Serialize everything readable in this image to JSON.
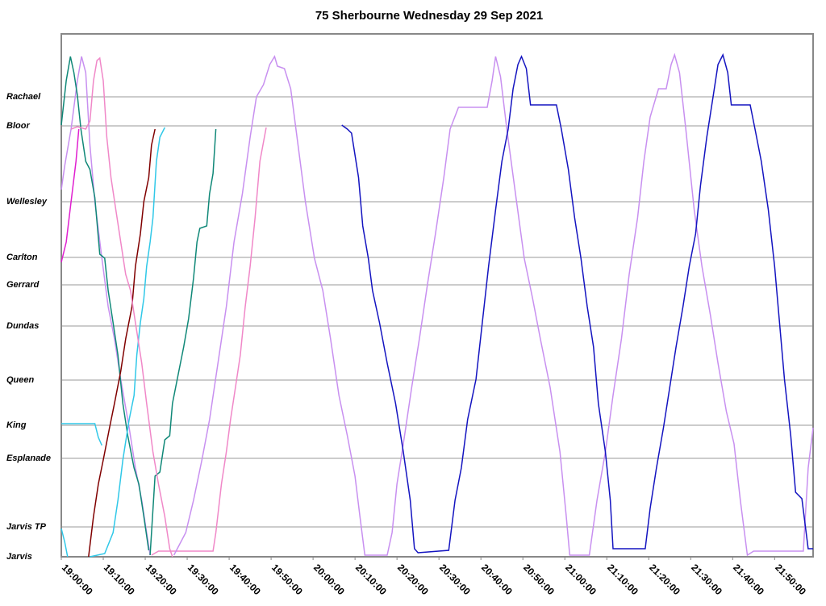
{
  "chart_data": {
    "type": "line",
    "title": "75 Sherbourne Wednesday 29 Sep 2021",
    "xlim": [
      "19:00:00",
      "21:59:10"
    ],
    "xticks": [
      "19:00:00",
      "19:10:00",
      "19:20:00",
      "19:30:00",
      "19:40:00",
      "19:50:00",
      "20:00:00",
      "20:10:00",
      "20:20:00",
      "20:30:00",
      "20:40:00",
      "20:50:00",
      "21:00:00",
      "21:10:00",
      "21:20:00",
      "21:30:00",
      "21:40:00",
      "21:50:00"
    ],
    "ylim": [
      0,
      3888
    ],
    "yticks": [
      {
        "value": 0,
        "label": "Jarvis"
      },
      {
        "value": 222,
        "label": "Jarvis TP"
      },
      {
        "value": 732,
        "label": "Esplanade"
      },
      {
        "value": 978,
        "label": "King"
      },
      {
        "value": 1314,
        "label": "Queen"
      },
      {
        "value": 1716,
        "label": "Dundas"
      },
      {
        "value": 2022,
        "label": "Gerrard"
      },
      {
        "value": 2226,
        "label": "Carlton"
      },
      {
        "value": 2640,
        "label": "Wellesley"
      },
      {
        "value": 3204,
        "label": "Bloor"
      },
      {
        "value": 3420,
        "label": "Rachael"
      }
    ],
    "grid": true,
    "series": [
      {
        "color": "#e020d0",
        "x": [
          "19:00:00",
          "19:01:10",
          "19:02:20",
          "19:03:30",
          "19:04:10"
        ],
        "values": [
          2190,
          2340,
          2640,
          2940,
          3180
        ]
      },
      {
        "color": "#c890f0",
        "x": [
          "19:00:00",
          "19:00:50",
          "19:02:20",
          "19:03:50",
          "19:04:50",
          "19:05:50",
          "19:06:50",
          "19:08:00",
          "19:09:40",
          "19:11:10",
          "19:12:40",
          "19:14:10",
          "19:16:10",
          "19:17:40",
          "19:19:10",
          "19:20:20",
          "19:21:10"
        ],
        "values": [
          2730,
          2910,
          3180,
          3540,
          3720,
          3600,
          3060,
          2640,
          2220,
          1860,
          1620,
          1320,
          960,
          660,
          420,
          180,
          12
        ]
      },
      {
        "color": "#108878",
        "x": [
          "19:00:00",
          "19:01:10",
          "19:02:10",
          "19:03:00",
          "19:03:50",
          "19:04:40",
          "19:05:50",
          "19:06:50",
          "19:08:00",
          "19:09:10",
          "19:10:20",
          "19:11:10",
          "19:12:20",
          "19:13:30",
          "19:14:40",
          "19:15:50",
          "19:17:20",
          "19:18:30",
          "19:19:40",
          "19:20:50"
        ],
        "values": [
          3210,
          3540,
          3720,
          3600,
          3432,
          3180,
          2940,
          2880,
          2670,
          2250,
          2220,
          1980,
          1740,
          1500,
          1140,
          900,
          660,
          540,
          300,
          48
        ]
      },
      {
        "color": "#108878",
        "x": [
          "19:21:10",
          "19:22:20",
          "19:23:30",
          "19:24:40",
          "19:25:50",
          "19:26:30",
          "19:28:00",
          "19:29:10",
          "19:30:20",
          "19:31:30",
          "19:32:20",
          "19:33:00",
          "19:34:40",
          "19:35:20",
          "19:36:10",
          "19:36:50"
        ],
        "values": [
          12,
          600,
          630,
          870,
          900,
          1140,
          1380,
          1560,
          1770,
          2070,
          2340,
          2442,
          2460,
          2700,
          2850,
          3180
        ]
      },
      {
        "color": "#800000",
        "x": [
          "19:06:30",
          "19:07:40",
          "19:08:50",
          "19:10:00",
          "19:11:30",
          "19:12:40",
          "19:14:10",
          "19:15:20",
          "19:16:50",
          "19:17:40",
          "19:18:50",
          "19:19:40",
          "19:20:50",
          "19:21:30",
          "19:22:20"
        ],
        "values": [
          0,
          300,
          540,
          720,
          960,
          1140,
          1380,
          1620,
          1860,
          2160,
          2400,
          2640,
          2820,
          3060,
          3180
        ]
      },
      {
        "color": "#30c8e8",
        "x": [
          "19:00:00",
          "19:00:50",
          "19:01:30"
        ],
        "values": [
          210,
          108,
          0
        ]
      },
      {
        "color": "#30c8e8",
        "x": [
          "19:00:00",
          "19:08:00",
          "19:08:50",
          "19:09:40"
        ],
        "values": [
          990,
          990,
          888,
          828
        ]
      },
      {
        "color": "#30c8e8",
        "x": [
          "19:06:50",
          "19:10:20",
          "19:12:20",
          "19:13:30",
          "19:14:40",
          "19:16:10",
          "19:17:20",
          "19:18:00",
          "19:18:50",
          "19:19:40",
          "19:20:20",
          "19:21:10",
          "19:21:50",
          "19:22:40",
          "19:23:30",
          "19:24:40"
        ],
        "values": [
          0,
          24,
          180,
          420,
          720,
          1020,
          1200,
          1500,
          1740,
          1920,
          2160,
          2340,
          2520,
          2940,
          3120,
          3192
        ]
      },
      {
        "color": "#f088c8",
        "x": [
          "19:02:20",
          "19:03:50",
          "19:05:50",
          "19:06:50",
          "19:07:40",
          "19:08:30",
          "19:09:10",
          "19:10:00",
          "19:10:50",
          "19:11:50",
          "19:13:00",
          "19:14:10",
          "19:15:20",
          "19:16:30",
          "19:17:40",
          "19:19:10",
          "19:20:20",
          "19:21:50",
          "19:23:10",
          "19:24:40",
          "19:25:50",
          "19:26:30"
        ],
        "values": [
          3180,
          3198,
          3180,
          3240,
          3540,
          3690,
          3708,
          3540,
          3120,
          2820,
          2580,
          2340,
          2100,
          1980,
          1740,
          1440,
          1140,
          780,
          540,
          300,
          60,
          0
        ]
      },
      {
        "color": "#f088c8",
        "x": [
          "19:21:30",
          "19:23:10",
          "19:36:10",
          "19:36:50",
          "19:38:10",
          "19:39:20",
          "19:40:20",
          "19:41:30",
          "19:42:40",
          "19:43:50",
          "19:45:00",
          "19:46:10",
          "19:47:20",
          "19:48:50"
        ],
        "values": [
          12,
          42,
          42,
          180,
          540,
          780,
          1020,
          1260,
          1500,
          1860,
          2160,
          2520,
          2940,
          3192
        ]
      },
      {
        "color": "#c890f0",
        "x": [
          "19:26:50",
          "19:29:40",
          "19:31:30",
          "19:33:30",
          "19:35:20",
          "19:37:20",
          "19:39:20",
          "19:41:10",
          "19:43:10",
          "19:45:00",
          "19:46:30",
          "19:48:10",
          "19:49:40",
          "19:50:50",
          "19:51:30",
          "19:53:10",
          "19:54:40",
          "19:56:10",
          "19:58:10",
          "20:00:20",
          "20:02:20",
          "20:04:10",
          "20:06:10",
          "20:08:10",
          "20:10:00",
          "20:11:10",
          "20:12:20",
          "20:17:40",
          "20:18:50",
          "20:20:00",
          "20:21:30",
          "20:23:30",
          "20:25:20",
          "20:27:20",
          "20:29:10",
          "20:31:10",
          "20:32:40",
          "20:34:40",
          "20:41:30",
          "20:42:40",
          "20:43:30",
          "20:44:40",
          "20:46:10",
          "20:48:30",
          "20:50:20",
          "20:52:20",
          "20:54:10",
          "20:56:30",
          "20:58:50",
          "21:00:20",
          "21:01:10",
          "21:05:50",
          "21:07:40",
          "21:09:40",
          "21:11:30",
          "21:13:30",
          "21:15:20",
          "21:17:20",
          "21:18:50",
          "21:20:20",
          "21:22:20",
          "21:24:10",
          "21:25:20",
          "21:26:10",
          "21:27:20",
          "21:28:50",
          "21:30:50",
          "21:32:40",
          "21:34:40",
          "21:36:30",
          "21:38:30",
          "21:40:20",
          "21:41:50",
          "21:43:30",
          "21:45:00",
          "21:56:50",
          "21:58:00",
          "21:59:10"
        ],
        "values": [
          12,
          180,
          420,
          720,
          1020,
          1440,
          1860,
          2340,
          2700,
          3120,
          3420,
          3510,
          3660,
          3720,
          3648,
          3630,
          3480,
          3120,
          2640,
          2220,
          1980,
          1620,
          1200,
          900,
          600,
          300,
          12,
          12,
          180,
          540,
          840,
          1260,
          1620,
          2040,
          2400,
          2820,
          3180,
          3342,
          3342,
          3540,
          3720,
          3570,
          3180,
          2640,
          2220,
          1920,
          1620,
          1260,
          780,
          300,
          12,
          12,
          420,
          780,
          1200,
          1620,
          2100,
          2520,
          2940,
          3270,
          3480,
          3480,
          3660,
          3732,
          3600,
          3180,
          2580,
          2160,
          1800,
          1440,
          1080,
          840,
          420,
          12,
          42,
          42,
          660,
          960
        ]
      },
      {
        "color": "#1414c0",
        "x": [
          "20:06:50",
          "20:08:10",
          "20:09:10",
          "20:10:50",
          "20:11:50",
          "20:13:10",
          "20:14:10",
          "20:15:50",
          "20:17:40",
          "20:19:40",
          "20:21:30",
          "20:23:10",
          "20:24:10",
          "20:25:00",
          "20:32:20",
          "20:33:50",
          "20:35:20",
          "20:36:50",
          "20:38:50",
          "20:40:20",
          "20:41:50",
          "20:43:30",
          "20:45:00",
          "20:46:30",
          "20:47:40",
          "20:48:50",
          "20:49:40",
          "20:50:50",
          "20:51:50",
          "20:58:00",
          "20:59:10",
          "21:00:50",
          "21:02:20",
          "21:03:50",
          "21:05:20",
          "21:06:50",
          "21:08:00",
          "21:09:40",
          "21:10:50",
          "21:11:30",
          "21:19:10",
          "21:20:20",
          "21:21:50",
          "21:23:30",
          "21:25:00",
          "21:26:30",
          "21:28:10",
          "21:29:40",
          "21:31:10",
          "21:32:20",
          "21:33:50",
          "21:35:20",
          "21:36:30",
          "21:37:40",
          "21:38:50",
          "21:39:40",
          "21:44:10",
          "21:45:20",
          "21:46:50",
          "21:48:30",
          "21:50:00",
          "21:51:10",
          "21:52:20",
          "21:53:50",
          "21:55:00",
          "21:56:30",
          "21:58:00",
          "21:59:10"
        ],
        "values": [
          3210,
          3180,
          3150,
          2820,
          2460,
          2220,
          1980,
          1740,
          1440,
          1140,
          780,
          420,
          60,
          30,
          48,
          420,
          660,
          1020,
          1320,
          1740,
          2160,
          2580,
          2940,
          3180,
          3480,
          3660,
          3720,
          3630,
          3360,
          3360,
          3180,
          2880,
          2520,
          2220,
          1860,
          1560,
          1140,
          780,
          420,
          60,
          60,
          360,
          660,
          960,
          1260,
          1560,
          1860,
          2160,
          2400,
          2760,
          3120,
          3420,
          3660,
          3732,
          3600,
          3360,
          3360,
          3180,
          2940,
          2580,
          2160,
          1740,
          1320,
          900,
          480,
          432,
          60,
          60
        ]
      }
    ]
  }
}
